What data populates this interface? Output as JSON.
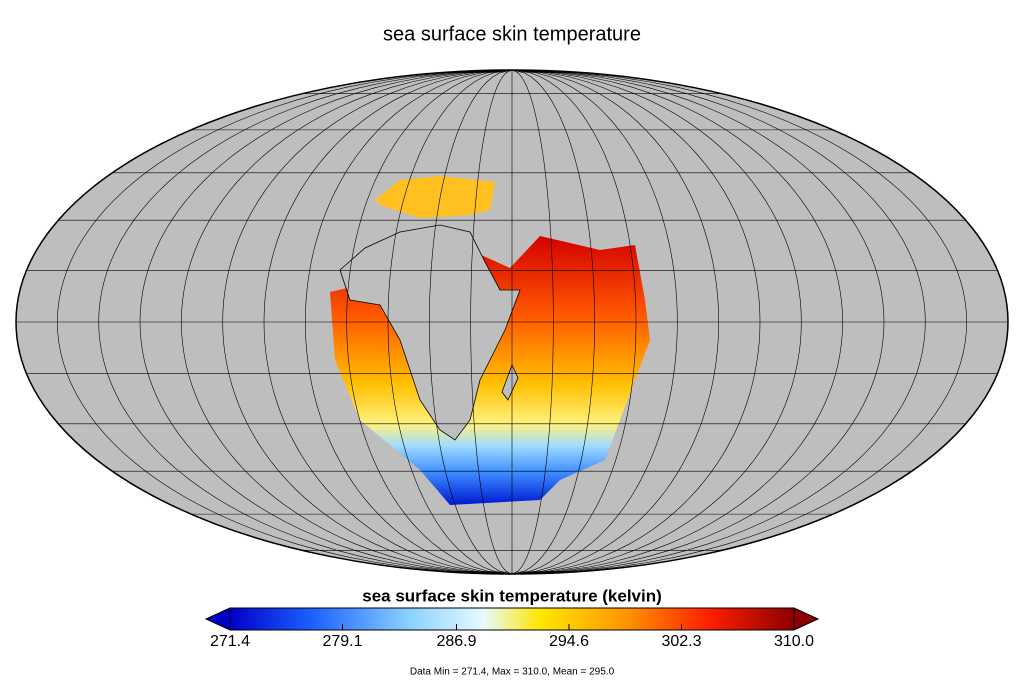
{
  "title": "sea surface skin temperature",
  "colorbar": {
    "label": "sea surface skin temperature (kelvin)",
    "range": [
      271.4,
      {
        "value": 310,
        "label": "310.0"
      }
    ],
    "ticks": [
      271.4,
      279.1,
      286.9,
      294.6,
      302.3,
      {
        "value": 310,
        "label": "310.0"
      }
    ]
  },
  "footer": "Data Min = 271.4, Max = 310.0, Mean = 295.0"
}
